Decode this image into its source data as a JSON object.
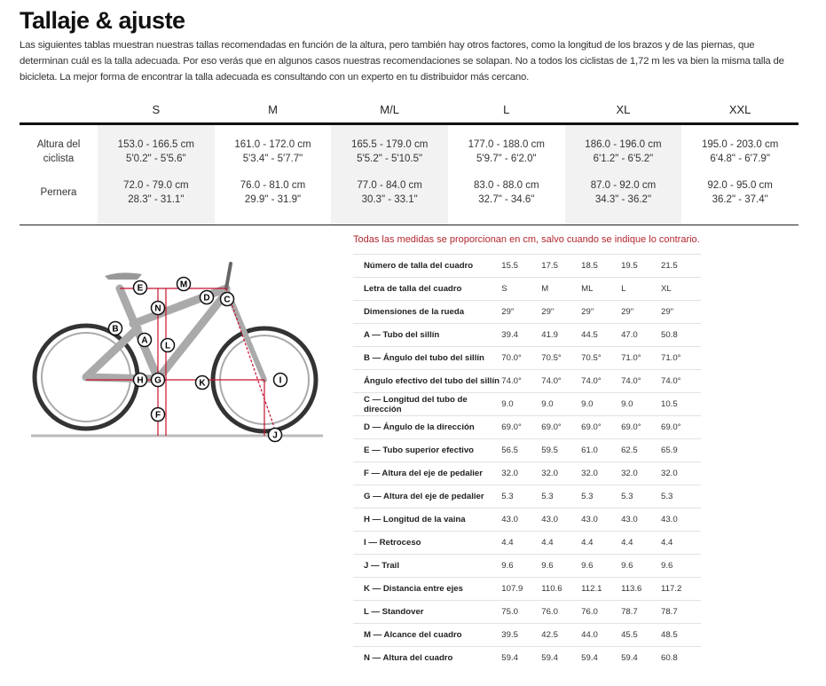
{
  "title": "Tallaje & ajuste",
  "intro": "Las siguientes tablas muestran nuestras tallas recomendadas en función de la altura, pero también hay otros factores, como la longitud de los brazos y de las piernas, que determinan cuál es la talla adecuada. Por eso verás que en algunos casos nuestras recomendaciones se solapan. No a todos los ciclistas de 1,72 m les va bien la misma talla de bicicleta. La mejor forma de encontrar la talla adecuada es consultando con un experto en tu distribuidor más cercano.",
  "size_table": {
    "headers": [
      "S",
      "M",
      "M/L",
      "L",
      "XL",
      "XXL"
    ],
    "rows": [
      {
        "label": "Altura del ciclista",
        "cells": [
          [
            "153.0 - 166.5 cm",
            "5'0.2\" - 5'5.6\""
          ],
          [
            "161.0 - 172.0 cm",
            "5'3.4\" - 5'7.7\""
          ],
          [
            "165.5 - 179.0 cm",
            "5'5.2\" - 5'10.5\""
          ],
          [
            "177.0 - 188.0 cm",
            "5'9.7\" - 6'2.0\""
          ],
          [
            "186.0 - 196.0 cm",
            "6'1.2\" - 6'5.2\""
          ],
          [
            "195.0 - 203.0 cm",
            "6'4.8\" - 6'7.9\""
          ]
        ]
      },
      {
        "label": "Pernera",
        "cells": [
          [
            "72.0 - 79.0 cm",
            "28.3\" - 31.1\""
          ],
          [
            "76.0 - 81.0 cm",
            "29.9\" - 31.9\""
          ],
          [
            "77.0 - 84.0 cm",
            "30.3\" - 33.1\""
          ],
          [
            "83.0 - 88.0 cm",
            "32.7\" - 34.6\""
          ],
          [
            "87.0 - 92.0 cm",
            "34.3\" - 36.2\""
          ],
          [
            "92.0 - 95.0 cm",
            "36.2\" - 37.4\""
          ]
        ]
      }
    ]
  },
  "geometry": {
    "note": "Todas las medidas se proporcionan en cm, salvo cuando se indique lo contrario.",
    "rows": [
      {
        "label": "Número de talla del cuadro",
        "values": [
          "15.5",
          "17.5",
          "18.5",
          "19.5",
          "21.5"
        ]
      },
      {
        "label": "Letra de talla del cuadro",
        "values": [
          "S",
          "M",
          "ML",
          "L",
          "XL"
        ]
      },
      {
        "label": "Dimensiones de la rueda",
        "values": [
          "29\"",
          "29\"",
          "29\"",
          "29\"",
          "29\""
        ]
      },
      {
        "label": "A — Tubo del sillín",
        "values": [
          "39.4",
          "41.9",
          "44.5",
          "47.0",
          "50.8"
        ]
      },
      {
        "label": "B — Ángulo del tubo del sillín",
        "values": [
          "70.0°",
          "70.5°",
          "70.5°",
          "71.0°",
          "71.0°"
        ]
      },
      {
        "label": "Ángulo efectivo del tubo del sillín",
        "values": [
          "74.0°",
          "74.0°",
          "74.0°",
          "74.0°",
          "74.0°"
        ]
      },
      {
        "label": "C — Longitud del tubo de dirección",
        "values": [
          "9.0",
          "9.0",
          "9.0",
          "9.0",
          "10.5"
        ]
      },
      {
        "label": "D — Ángulo de la dirección",
        "values": [
          "69.0°",
          "69.0°",
          "69.0°",
          "69.0°",
          "69.0°"
        ]
      },
      {
        "label": "E — Tubo superior efectivo",
        "values": [
          "56.5",
          "59.5",
          "61.0",
          "62.5",
          "65.9"
        ]
      },
      {
        "label": "F — Altura del eje de pedalier",
        "values": [
          "32.0",
          "32.0",
          "32.0",
          "32.0",
          "32.0"
        ]
      },
      {
        "label": "G — Altura del eje de pedalier",
        "values": [
          "5.3",
          "5.3",
          "5.3",
          "5.3",
          "5.3"
        ]
      },
      {
        "label": "H — Longitud de la vaina",
        "values": [
          "43.0",
          "43.0",
          "43.0",
          "43.0",
          "43.0"
        ]
      },
      {
        "label": "I — Retroceso",
        "values": [
          "4.4",
          "4.4",
          "4.4",
          "4.4",
          "4.4"
        ]
      },
      {
        "label": "J — Trail",
        "values": [
          "9.6",
          "9.6",
          "9.6",
          "9.6",
          "9.6"
        ]
      },
      {
        "label": "K — Distancia entre ejes",
        "values": [
          "107.9",
          "110.6",
          "112.1",
          "113.6",
          "117.2"
        ]
      },
      {
        "label": "L — Standover",
        "values": [
          "75.0",
          "76.0",
          "76.0",
          "78.7",
          "78.7"
        ]
      },
      {
        "label": "M — Alcance del cuadro",
        "values": [
          "39.5",
          "42.5",
          "44.0",
          "45.5",
          "48.5"
        ]
      },
      {
        "label": "N — Altura del cuadro",
        "values": [
          "59.4",
          "59.4",
          "59.4",
          "59.4",
          "60.8"
        ]
      }
    ]
  },
  "diagram": {
    "markers": [
      "A",
      "B",
      "C",
      "D",
      "E",
      "F",
      "G",
      "H",
      "I",
      "J",
      "K",
      "L",
      "M",
      "N"
    ],
    "accent_color": "#c8102e"
  }
}
